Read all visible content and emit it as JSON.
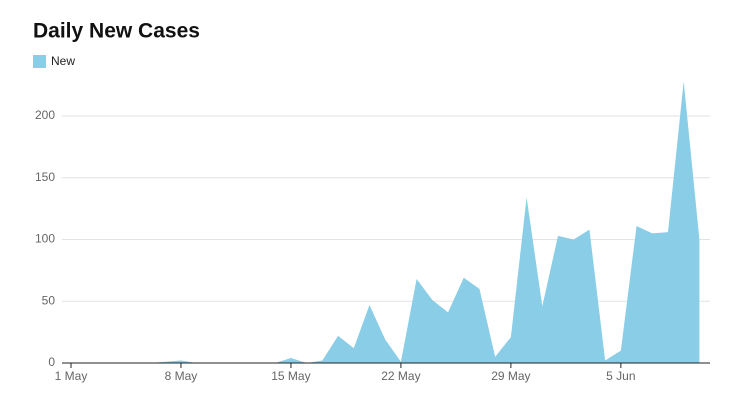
{
  "chart_data": {
    "type": "area",
    "title": "Daily New Cases",
    "categories": [
      "1 May",
      null,
      null,
      null,
      null,
      null,
      null,
      "8 May",
      null,
      null,
      null,
      null,
      null,
      null,
      "15 May",
      null,
      null,
      null,
      null,
      null,
      null,
      "22 May",
      null,
      null,
      null,
      null,
      null,
      null,
      "29 May",
      null,
      null,
      null,
      null,
      null,
      null,
      "5 Jun",
      null,
      null,
      null,
      null,
      null
    ],
    "series": [
      {
        "name": "New",
        "color": "#89cde6",
        "values": [
          0,
          0,
          0,
          0,
          0,
          0,
          1,
          2,
          0,
          0,
          0,
          0,
          0,
          0,
          4,
          0,
          2,
          22,
          12,
          47,
          19,
          1,
          68,
          51,
          41,
          69,
          60,
          5,
          21,
          134,
          46,
          103,
          100,
          108,
          2,
          10,
          111,
          105,
          106,
          228,
          100
        ]
      }
    ],
    "ylim": [
      0,
      230
    ],
    "yticks": [
      0,
      50,
      100,
      150,
      200
    ],
    "grid": true,
    "legend": "top-left"
  }
}
